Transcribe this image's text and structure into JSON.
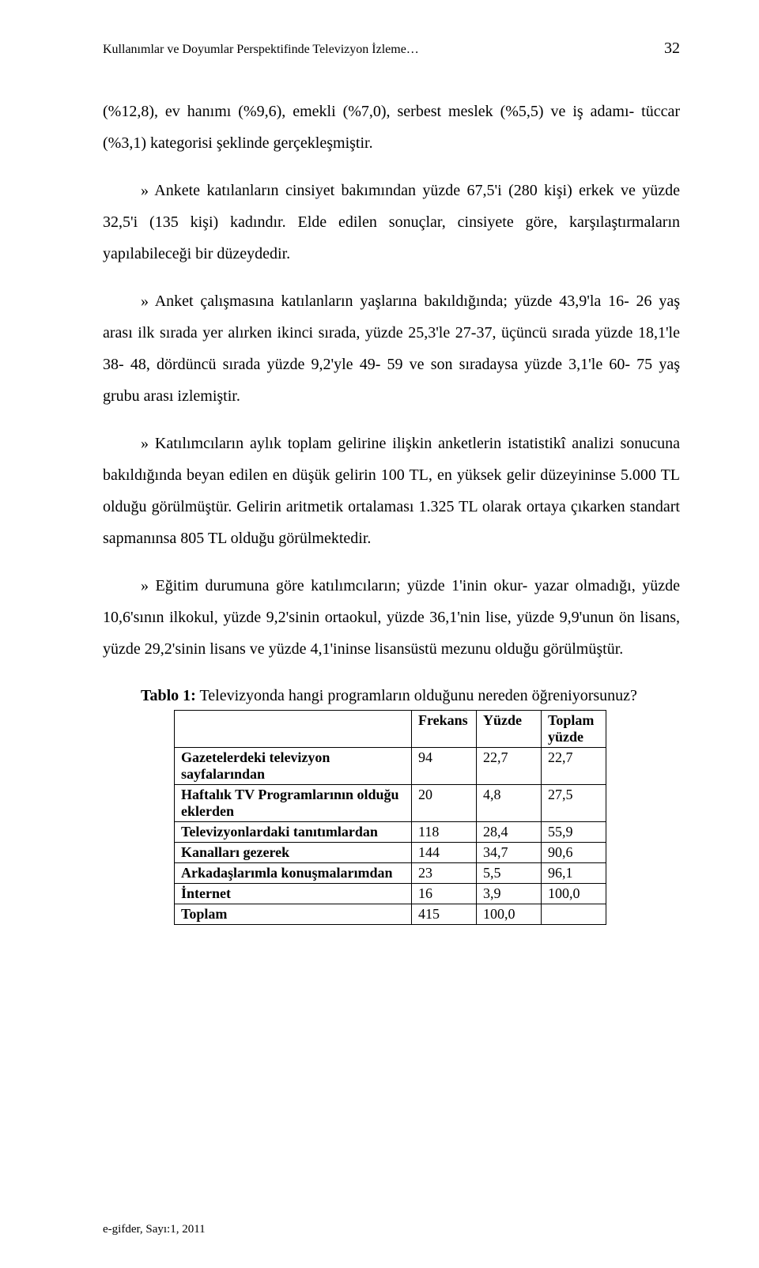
{
  "header": {
    "running_title": "Kullanımlar ve Doyumlar Perspektifinde Televizyon İzleme…",
    "page_number": "32"
  },
  "paragraphs": {
    "p1": "(%12,8), ev hanımı (%9,6), emekli (%7,0), serbest meslek (%5,5) ve iş adamı- tüccar (%3,1) kategorisi şeklinde gerçekleşmiştir.",
    "p2": "» Ankete katılanların cinsiyet bakımından yüzde 67,5'i (280 kişi) erkek ve yüzde 32,5'i (135 kişi) kadındır. Elde edilen sonuçlar, cinsiyete göre, karşılaştırmaların yapılabileceği bir düzeydedir.",
    "p3": "» Anket çalışmasına katılanların yaşlarına bakıldığında; yüzde 43,9'la 16- 26 yaş arası ilk sırada yer alırken ikinci sırada, yüzde 25,3'le 27-37, üçüncü sırada yüzde 18,1'le 38- 48, dördüncü sırada yüzde 9,2'yle 49- 59 ve son sıradaysa yüzde 3,1'le 60- 75 yaş grubu arası izlemiştir.",
    "p4": "» Katılımcıların aylık toplam gelirine ilişkin anketlerin istatistikî analizi sonucuna bakıldığında beyan edilen en düşük gelirin 100 TL, en yüksek gelir düzeyininse 5.000 TL olduğu görülmüştür. Gelirin aritmetik ortalaması 1.325 TL olarak ortaya çıkarken standart sapmanınsa 805 TL olduğu görülmektedir.",
    "p5": "» Eğitim durumuna göre katılımcıların; yüzde 1'inin okur- yazar olmadığı, yüzde 10,6'sının ilkokul, yüzde 9,2'sinin ortaokul, yüzde 36,1'nin lise, yüzde 9,9'unun ön lisans, yüzde 29,2'sinin lisans ve yüzde 4,1'ininse lisansüstü mezunu olduğu görülmüştür."
  },
  "table": {
    "caption_bold": "Tablo 1:",
    "caption_rest": " Televizyonda hangi programların olduğunu nereden öğreniyorsunuz?",
    "headers": {
      "c0": "",
      "c1": "Frekans",
      "c2": "Yüzde",
      "c3": "Toplam yüzde"
    },
    "rows": [
      {
        "label": "Gazetelerdeki televizyon sayfalarından",
        "v1": "94",
        "v2": "22,7",
        "v3": "22,7"
      },
      {
        "label": "Haftalık TV Programlarının olduğu eklerden",
        "v1": "20",
        "v2": "4,8",
        "v3": "27,5"
      },
      {
        "label": "Televizyonlardaki tanıtımlardan",
        "v1": "118",
        "v2": "28,4",
        "v3": "55,9"
      },
      {
        "label": "Kanalları gezerek",
        "v1": "144",
        "v2": "34,7",
        "v3": "90,6"
      },
      {
        "label": "Arkadaşlarımla konuşmalarımdan",
        "v1": "23",
        "v2": "5,5",
        "v3": "96,1"
      },
      {
        "label": "İnternet",
        "v1": "16",
        "v2": "3,9",
        "v3": "100,0"
      },
      {
        "label": "Toplam",
        "v1": "415",
        "v2": "100,0",
        "v3": ""
      }
    ]
  },
  "footer": {
    "text": "e-gifder, Sayı:1, 2011"
  }
}
